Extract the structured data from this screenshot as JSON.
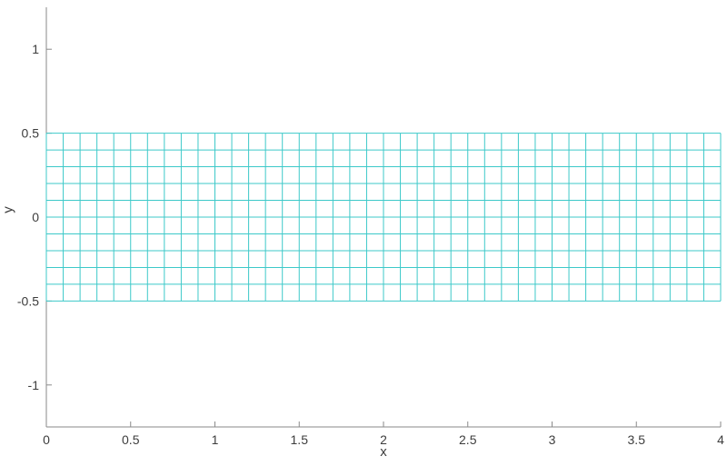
{
  "figure": {
    "background_color": "#ffffff",
    "axis_color": "#8a8a8a",
    "text_color": "#3d3d3d"
  },
  "chart_data": {
    "type": "heatmap",
    "subtype": "uniform-rectangular-mesh-grid",
    "title": "",
    "xlabel": "x",
    "ylabel": "y",
    "xlim": [
      0,
      4
    ],
    "ylim": [
      -1.25,
      1.25
    ],
    "x_ticks": [
      0,
      0.5,
      1,
      1.5,
      2,
      2.5,
      3,
      3.5,
      4
    ],
    "x_tick_labels": [
      "0",
      "0.5",
      "1",
      "1.5",
      "2",
      "2.5",
      "3",
      "3.5",
      "4"
    ],
    "y_ticks": [
      -1,
      -0.5,
      0,
      0.5,
      1
    ],
    "y_tick_labels": [
      "-1",
      "-0.5",
      "0",
      "0.5",
      "1"
    ],
    "grid": false,
    "box": false,
    "legend": null,
    "tick_direction": "in",
    "mesh": {
      "x_start": 0,
      "x_end": 4,
      "x_step": 0.1,
      "n_cols": 40,
      "y_start": -0.5,
      "y_end": 0.5,
      "y_step": 0.1,
      "n_rows": 10,
      "edge_color": "#3dc9c9",
      "cell_fill": "none"
    }
  }
}
